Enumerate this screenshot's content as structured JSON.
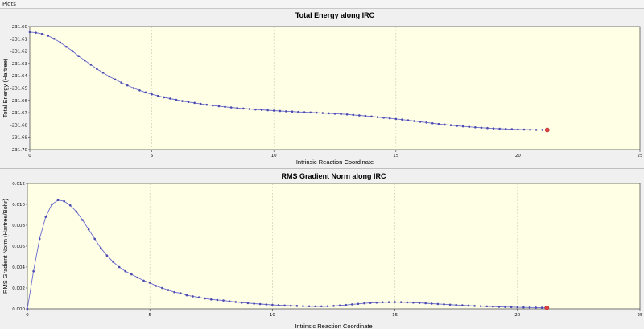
{
  "window": {
    "title": "Plots"
  },
  "colors": {
    "plot_background": "#ffffe6",
    "line": "#6a6ad0",
    "point": "#4a4ab0",
    "current_point": "#e04040",
    "gridline": "#c8c8b4"
  },
  "chart_data": [
    {
      "type": "line",
      "title": "Total Energy along IRC",
      "xlabel": "Intrinsic Reaction Coordinate",
      "ylabel": "Total Energy (Hartree)",
      "xlim": [
        0,
        25
      ],
      "ylim": [
        -231.7,
        -231.6
      ],
      "x_ticks": [
        "0",
        "5",
        "10",
        "15",
        "20",
        "25"
      ],
      "y_ticks": [
        "-231.60",
        "-231.61",
        "-231.62",
        "-231.63",
        "-231.64",
        "-231.65",
        "-231.66",
        "-231.67",
        "-231.68",
        "-231.69",
        "-231.70"
      ],
      "grid": true,
      "x": [
        0.0,
        0.25,
        0.5,
        0.75,
        1.0,
        1.25,
        1.5,
        1.75,
        2.0,
        2.25,
        2.5,
        2.75,
        3.0,
        3.25,
        3.5,
        3.75,
        4.0,
        4.25,
        4.5,
        4.75,
        5.0,
        5.25,
        5.5,
        5.75,
        6.0,
        6.25,
        6.5,
        6.75,
        7.0,
        7.25,
        7.5,
        7.75,
        8.0,
        8.25,
        8.5,
        8.75,
        9.0,
        9.25,
        9.5,
        9.75,
        10.0,
        10.25,
        10.5,
        10.75,
        11.0,
        11.25,
        11.5,
        11.75,
        12.0,
        12.25,
        12.5,
        12.75,
        13.0,
        13.25,
        13.5,
        13.75,
        14.0,
        14.25,
        14.5,
        14.75,
        15.0,
        15.25,
        15.5,
        15.75,
        16.0,
        16.25,
        16.5,
        16.75,
        17.0,
        17.25,
        17.5,
        17.75,
        18.0,
        18.25,
        18.5,
        18.75,
        19.0,
        19.25,
        19.5,
        19.75,
        20.0,
        20.25,
        20.5,
        20.75,
        21.0,
        21.2
      ],
      "y": [
        -231.6045,
        -231.605,
        -231.606,
        -231.6075,
        -231.61,
        -231.613,
        -231.6165,
        -231.62,
        -231.624,
        -231.6275,
        -231.631,
        -231.6345,
        -231.6375,
        -231.6405,
        -231.643,
        -231.6455,
        -231.6478,
        -231.65,
        -231.6518,
        -231.6535,
        -231.655,
        -231.6563,
        -231.6575,
        -231.6585,
        -231.6595,
        -231.6605,
        -231.6613,
        -231.662,
        -231.6628,
        -231.6635,
        -231.6641,
        -231.6647,
        -231.6652,
        -231.6657,
        -231.6662,
        -231.6666,
        -231.667,
        -231.6674,
        -231.6677,
        -231.668,
        -231.6683,
        -231.6686,
        -231.6689,
        -231.6691,
        -231.6694,
        -231.6696,
        -231.6698,
        -231.67,
        -231.6703,
        -231.6705,
        -231.6708,
        -231.6711,
        -231.6714,
        -231.6718,
        -231.6722,
        -231.6726,
        -231.6731,
        -231.6736,
        -231.6741,
        -231.6746,
        -231.6751,
        -231.6756,
        -231.6762,
        -231.6768,
        -231.6774,
        -231.678,
        -231.6786,
        -231.6792,
        -231.6797,
        -231.6802,
        -231.6807,
        -231.6811,
        -231.6815,
        -231.6819,
        -231.6822,
        -231.6825,
        -231.6828,
        -231.683,
        -231.6832,
        -231.6834,
        -231.6836,
        -231.6837,
        -231.6838,
        -231.6839,
        -231.6839,
        -231.684
      ]
    },
    {
      "type": "line",
      "title": "RMS Gradient Norm along IRC",
      "xlabel": "Intrinsic Reaction Coordinate",
      "ylabel": "RMS Gradient Norm (Hartree/Bohr)",
      "xlim": [
        0,
        25
      ],
      "ylim": [
        0,
        0.012
      ],
      "x_ticks": [
        "0",
        "5",
        "10",
        "15",
        "20",
        "25"
      ],
      "y_ticks": [
        "0.000",
        "0.002",
        "0.004",
        "0.006",
        "0.008",
        "0.010",
        "0.012"
      ],
      "grid": true,
      "x": [
        0.0,
        0.25,
        0.5,
        0.75,
        1.0,
        1.25,
        1.5,
        1.75,
        2.0,
        2.25,
        2.5,
        2.75,
        3.0,
        3.25,
        3.5,
        3.75,
        4.0,
        4.25,
        4.5,
        4.75,
        5.0,
        5.25,
        5.5,
        5.75,
        6.0,
        6.25,
        6.5,
        6.75,
        7.0,
        7.25,
        7.5,
        7.75,
        8.0,
        8.25,
        8.5,
        8.75,
        9.0,
        9.25,
        9.5,
        9.75,
        10.0,
        10.25,
        10.5,
        10.75,
        11.0,
        11.25,
        11.5,
        11.75,
        12.0,
        12.25,
        12.5,
        12.75,
        13.0,
        13.25,
        13.5,
        13.75,
        14.0,
        14.25,
        14.5,
        14.75,
        15.0,
        15.25,
        15.5,
        15.75,
        16.0,
        16.25,
        16.5,
        16.75,
        17.0,
        17.25,
        17.5,
        17.75,
        18.0,
        18.25,
        18.5,
        18.75,
        19.0,
        19.25,
        19.5,
        19.75,
        20.0,
        20.25,
        20.5,
        20.75,
        21.0,
        21.2
      ],
      "y": [
        0.0,
        0.0036,
        0.0067,
        0.0088,
        0.01,
        0.0104,
        0.0103,
        0.0099,
        0.0093,
        0.0085,
        0.0076,
        0.0067,
        0.0058,
        0.0051,
        0.0045,
        0.004,
        0.0036,
        0.0033,
        0.003,
        0.0027,
        0.0025,
        0.0022,
        0.002,
        0.0018,
        0.0016,
        0.0015,
        0.0013,
        0.0012,
        0.0011,
        0.001,
        0.0009,
        0.00085,
        0.0008,
        0.00072,
        0.00066,
        0.0006,
        0.00055,
        0.0005,
        0.00046,
        0.00042,
        0.00038,
        0.00035,
        0.00032,
        0.0003,
        0.00028,
        0.00026,
        0.00025,
        0.00024,
        0.00024,
        0.00025,
        0.00028,
        0.00032,
        0.00037,
        0.00043,
        0.00048,
        0.00053,
        0.00057,
        0.0006,
        0.00063,
        0.00064,
        0.00065,
        0.00064,
        0.00062,
        0.0006,
        0.00057,
        0.00054,
        0.0005,
        0.00047,
        0.00044,
        0.0004,
        0.00037,
        0.00034,
        0.00031,
        0.00028,
        0.00026,
        0.00024,
        0.00022,
        0.0002,
        0.00018,
        0.00017,
        0.00015,
        0.00014,
        0.00013,
        0.00012,
        0.00011,
        0.0001
      ]
    }
  ]
}
